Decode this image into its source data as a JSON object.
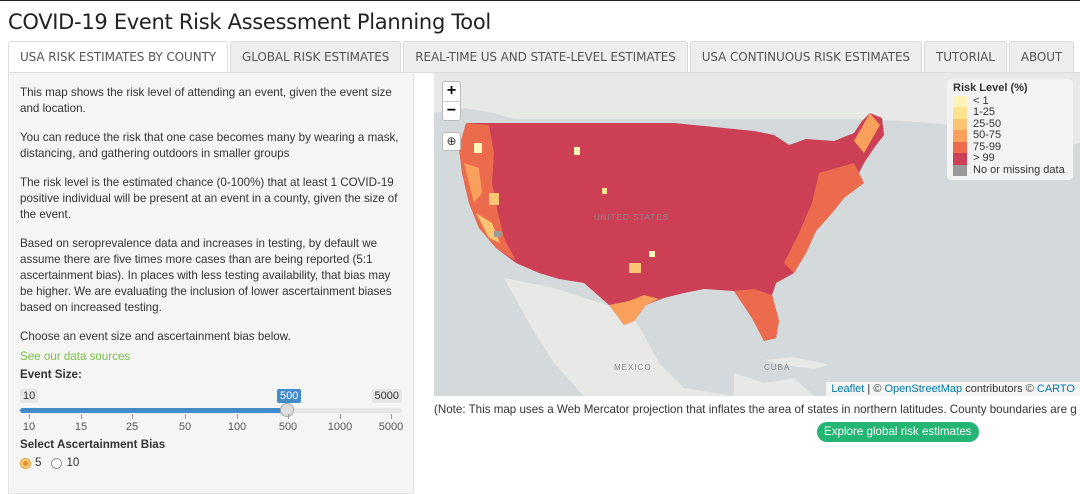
{
  "app": {
    "title": "COVID-19 Event Risk Assessment Planning Tool"
  },
  "tabs": [
    {
      "label": "USA RISK ESTIMATES BY COUNTY",
      "active": true
    },
    {
      "label": "GLOBAL RISK ESTIMATES",
      "active": false
    },
    {
      "label": "REAL-TIME US AND STATE-LEVEL ESTIMATES",
      "active": false
    },
    {
      "label": "USA CONTINUOUS RISK ESTIMATES",
      "active": false
    },
    {
      "label": "TUTORIAL",
      "active": false
    },
    {
      "label": "ABOUT",
      "active": false
    }
  ],
  "sidebar": {
    "p1": "This map shows the risk level of attending an event, given the event size and location.",
    "p2": "You can reduce the risk that one case becomes many by wearing a mask, distancing, and gathering outdoors in smaller groups",
    "p3": "The risk level is the estimated chance (0-100%) that at least 1 COVID-19 positive individual will be present at an event in a county, given the size of the event.",
    "p4": "Based on seroprevalence data and increases in testing, by default we assume there are five times more cases than are being reported (5:1 ascertainment bias). In places with less testing availability, that bias may be higher. We are evaluating the inclusion of lower ascertainment biases based on increased testing.",
    "p5": "Choose an event size and ascertainment bias below.",
    "sources_link": "See our data sources",
    "event_size_label": "Event Size:",
    "slider": {
      "min": "10",
      "max": "5000",
      "current": "500",
      "ticks": [
        "10",
        "15",
        "25",
        "50",
        "100",
        "500",
        "1000",
        "5000"
      ]
    },
    "bias_label": "Select Ascertainment Bias",
    "bias_options": [
      {
        "label": "5",
        "selected": true
      },
      {
        "label": "10",
        "selected": false
      }
    ]
  },
  "map": {
    "zoom_in": "+",
    "zoom_out": "−",
    "legend": {
      "title": "Risk Level (%)",
      "items": [
        {
          "label": "< 1",
          "color": "#fff3b8"
        },
        {
          "label": "1-25",
          "color": "#fee28f"
        },
        {
          "label": "25-50",
          "color": "#fdc473"
        },
        {
          "label": "50-75",
          "color": "#f9a05c"
        },
        {
          "label": "75-99",
          "color": "#ec6b4d"
        },
        {
          "label": "> 99",
          "color": "#cc3f55"
        },
        {
          "label": "No or missing data",
          "color": "#9a9a9a"
        }
      ]
    },
    "labels": {
      "united_states": "UNITED STATES",
      "mexico": "MEXICO",
      "cuba": "CUBA"
    },
    "attribution": {
      "leaflet": "Leaflet",
      "sep": " | © ",
      "osm": "OpenStreetMap",
      "contributors": " contributors © ",
      "carto": "CARTO"
    }
  },
  "note": "(Note: This map uses a Web Mercator projection that inflates the area of states in northern latitudes. County boundaries are g",
  "explore_button": "Explore global risk estimates"
}
